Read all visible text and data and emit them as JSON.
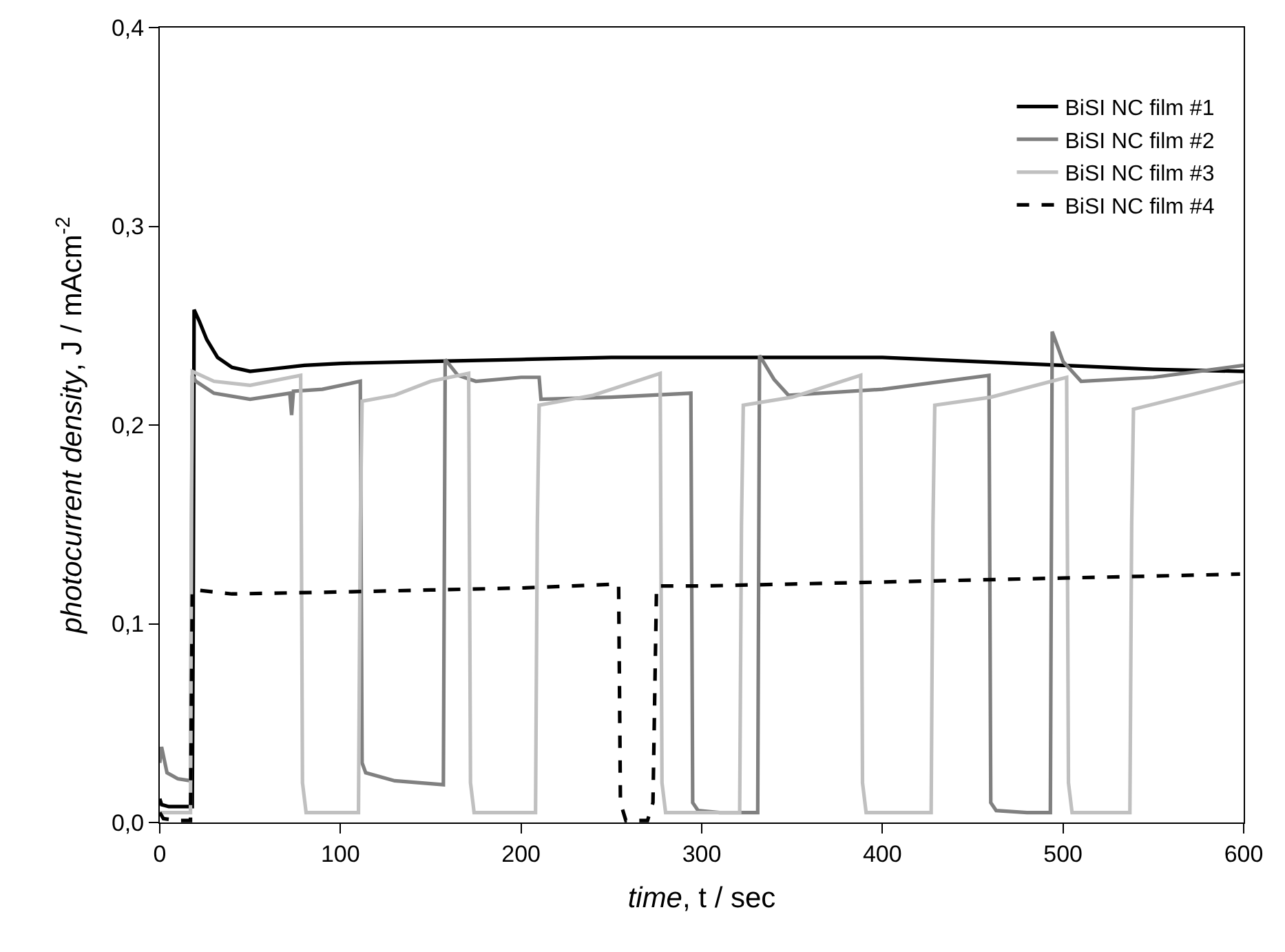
{
  "chart_data": {
    "type": "line",
    "xlabel": "time, t / sec",
    "ylabel": "photocurrent density, J / mAcm$^{-2}$",
    "xlim": [
      0,
      600
    ],
    "xticks": [
      0,
      100,
      200,
      300,
      400,
      500,
      600
    ],
    "ylim": [
      0,
      0.4
    ],
    "yticks": [
      {
        "value": 0,
        "label": "0,0"
      },
      {
        "value": 0.1,
        "label": "0,1"
      },
      {
        "value": 0.2,
        "label": "0,2"
      },
      {
        "value": 0.3,
        "label": "0,3"
      },
      {
        "value": 0.4,
        "label": "0,4"
      }
    ],
    "legend": "top right",
    "marker": "none",
    "series": [
      {
        "name": "BiSI NC film #1",
        "color": "#000000",
        "line_style": "solid",
        "x": [
          0,
          1,
          5,
          10,
          15,
          18,
          18.5,
          19,
          22,
          26,
          32,
          40,
          50,
          60,
          80,
          100,
          150,
          200,
          250,
          300,
          350,
          400,
          450,
          500,
          550,
          600
        ],
        "values": [
          0.012,
          0.009,
          0.008,
          0.008,
          0.008,
          0.008,
          0.1,
          0.258,
          0.252,
          0.243,
          0.234,
          0.229,
          0.227,
          0.228,
          0.23,
          0.231,
          0.232,
          0.233,
          0.234,
          0.234,
          0.234,
          0.234,
          0.232,
          0.23,
          0.228,
          0.227
        ]
      },
      {
        "name": "BiSI NC film #2",
        "color": "#808080",
        "line_style": "solid",
        "x": [
          0,
          1,
          4,
          10,
          17,
          18,
          20,
          30,
          50,
          72,
          73,
          74,
          90,
          111,
          112,
          114,
          130,
          157,
          158,
          165,
          175,
          200,
          210,
          211,
          250,
          294,
          295,
          298,
          310,
          331,
          332,
          340,
          348,
          400,
          459,
          460,
          463,
          480,
          493,
          494,
          500,
          510,
          550,
          600
        ],
        "values": [
          0.03,
          0.038,
          0.025,
          0.022,
          0.021,
          0.225,
          0.222,
          0.216,
          0.213,
          0.216,
          0.205,
          0.217,
          0.218,
          0.222,
          0.03,
          0.025,
          0.021,
          0.019,
          0.233,
          0.225,
          0.222,
          0.224,
          0.224,
          0.213,
          0.214,
          0.216,
          0.01,
          0.006,
          0.005,
          0.005,
          0.235,
          0.223,
          0.215,
          0.218,
          0.225,
          0.01,
          0.006,
          0.005,
          0.005,
          0.247,
          0.232,
          0.222,
          0.224,
          0.23
        ]
      },
      {
        "name": "BiSI NC film #3",
        "color": "#c0c0c0",
        "line_style": "solid",
        "x": [
          0,
          17,
          17.5,
          18,
          30,
          50,
          78,
          79,
          81,
          110,
          111,
          112,
          130,
          150,
          171,
          172,
          174,
          208,
          209,
          210,
          240,
          277,
          278,
          280,
          321,
          322,
          323,
          350,
          388,
          389,
          391,
          427,
          428,
          429,
          460,
          502,
          503,
          505,
          537,
          538,
          539,
          570,
          600
        ],
        "values": [
          0.005,
          0.005,
          0.15,
          0.227,
          0.222,
          0.22,
          0.225,
          0.02,
          0.005,
          0.005,
          0.15,
          0.212,
          0.215,
          0.222,
          0.226,
          0.02,
          0.005,
          0.005,
          0.15,
          0.21,
          0.215,
          0.226,
          0.02,
          0.005,
          0.005,
          0.15,
          0.21,
          0.214,
          0.225,
          0.02,
          0.005,
          0.005,
          0.15,
          0.21,
          0.214,
          0.224,
          0.02,
          0.005,
          0.005,
          0.15,
          0.208,
          0.215,
          0.222
        ]
      },
      {
        "name": "BiSI NC film #4",
        "color": "#000000",
        "line_style": "dashed",
        "x": [
          0,
          2,
          10,
          17,
          18,
          20,
          40,
          100,
          150,
          200,
          254,
          255,
          258,
          270,
          273,
          275,
          300,
          350,
          400,
          450,
          500,
          550,
          598
        ],
        "values": [
          0.005,
          0.002,
          0.001,
          0.001,
          0.117,
          0.117,
          0.115,
          0.116,
          0.117,
          0.118,
          0.12,
          0.01,
          0.001,
          0.001,
          0.01,
          0.119,
          0.119,
          0.12,
          0.121,
          0.122,
          0.123,
          0.124,
          0.125
        ]
      }
    ]
  }
}
